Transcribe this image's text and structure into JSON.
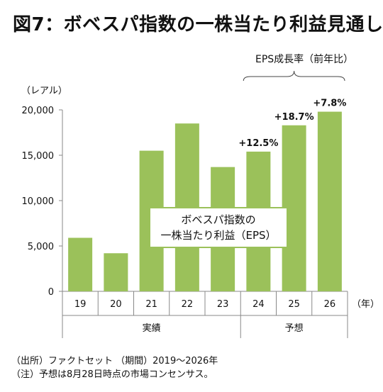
{
  "title": "図7：ボベスパ指数の一株当たり利益見通し",
  "legend": {
    "line1": "ボベスパ指数の",
    "line2": "一株当たり利益（EPS）"
  },
  "eps_growth_label": "EPS成長率（前年比）",
  "footnotes": {
    "source": "（出所）ファクトセット （期間）2019～2026年",
    "note": "（注）予想は8月28日時点の市場コンセンサス。"
  },
  "chart_data": {
    "type": "bar",
    "title": "図7：ボベスパ指数の一株当たり利益見通し",
    "ylabel": "（レアル）",
    "xlabel": "（年）",
    "categories": [
      "19",
      "20",
      "21",
      "22",
      "23",
      "24",
      "25",
      "26"
    ],
    "values": [
      5900,
      4200,
      15500,
      18500,
      13700,
      15400,
      18300,
      19800
    ],
    "ylim": [
      0,
      20000
    ],
    "yticks": [
      {
        "value": 0,
        "label": "0"
      },
      {
        "value": 5000,
        "label": "5,000"
      },
      {
        "value": 10000,
        "label": "10,000"
      },
      {
        "value": 15000,
        "label": "15,000"
      },
      {
        "value": 20000,
        "label": "20,000"
      }
    ],
    "growth_labels": [
      {
        "category": "24",
        "text": "+12.5%"
      },
      {
        "category": "25",
        "text": "+18.7%"
      },
      {
        "category": "26",
        "text": "+7.8%"
      }
    ],
    "groups": [
      {
        "label": "実績",
        "categories": [
          "19",
          "20",
          "21",
          "22",
          "23"
        ]
      },
      {
        "label": "予想",
        "categories": [
          "24",
          "25",
          "26"
        ]
      }
    ],
    "bar_color": "#9bc15a",
    "grid": false
  }
}
